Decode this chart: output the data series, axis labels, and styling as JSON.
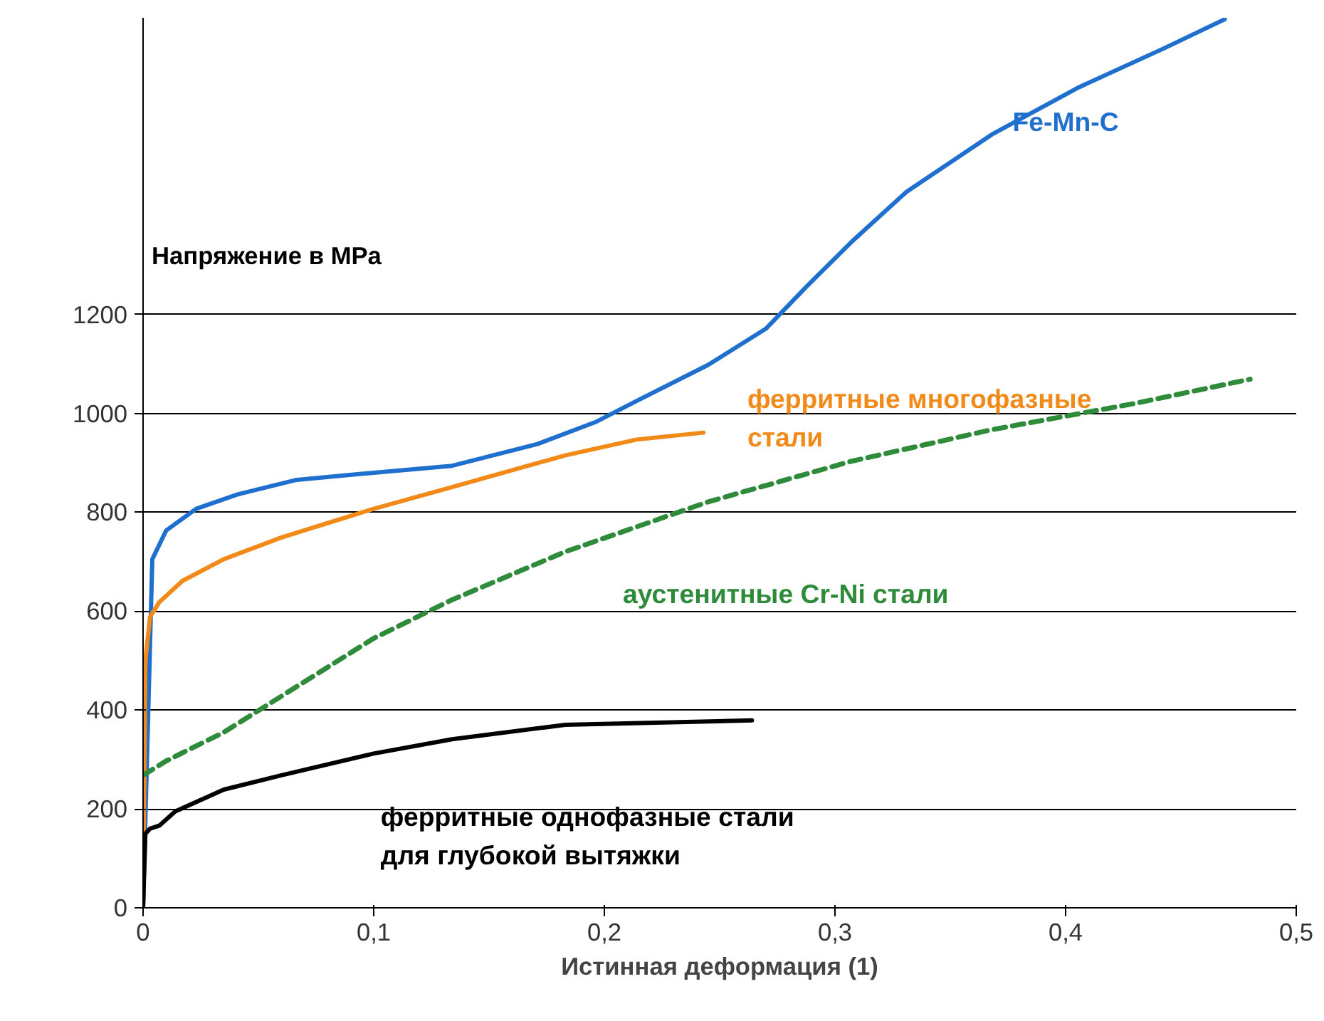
{
  "chart_data": {
    "type": "line",
    "xlabel": "Истинная деформация (1)",
    "ylabel": "Напряжение в MPa",
    "xlim": [
      0,
      0.5
    ],
    "ylim": [
      0,
      1800
    ],
    "xticks": [
      {
        "value": 0,
        "label": "0"
      },
      {
        "value": 0.1,
        "label": "0,1"
      },
      {
        "value": 0.2,
        "label": "0,2"
      },
      {
        "value": 0.3,
        "label": "0,3"
      },
      {
        "value": 0.4,
        "label": "0,4"
      },
      {
        "value": 0.5,
        "label": "0,5"
      }
    ],
    "yticks": [
      0,
      200,
      400,
      600,
      800,
      1000,
      1200
    ],
    "grid": "y",
    "legend": false,
    "series": [
      {
        "name": "Fe-Mn-C",
        "color": "#1f6fcf",
        "line_style": "solid",
        "x": [
          0,
          0.004,
          0.01,
          0.023,
          0.041,
          0.066,
          0.1,
          0.134,
          0.171,
          0.196,
          0.214,
          0.245,
          0.27,
          0.288,
          0.307,
          0.331,
          0.368,
          0.406,
          0.443,
          0.469
        ],
        "values": [
          0,
          705,
          763,
          807,
          836,
          865,
          880,
          894,
          938,
          982,
          1025,
          1098,
          1171,
          1258,
          1346,
          1448,
          1564,
          1660,
          1739,
          1797
        ]
      },
      {
        "name": "ферритные многофазные\nстали",
        "color": "#f28a1a",
        "line_style": "solid",
        "x": [
          0,
          0.001,
          0.003,
          0.007,
          0.017,
          0.035,
          0.06,
          0.1,
          0.134,
          0.183,
          0.214,
          0.243
        ],
        "values": [
          0,
          500,
          588,
          618,
          661,
          705,
          749,
          807,
          851,
          915,
          947,
          961
        ]
      },
      {
        "name": "аустенитные Cr-Ni стали",
        "color": "#2e8b3a",
        "line_style": "dashed",
        "x": [
          0,
          0.01,
          0.035,
          0.06,
          0.1,
          0.134,
          0.183,
          0.245,
          0.307,
          0.368,
          0.43,
          0.48
        ],
        "values": [
          268,
          297,
          355,
          428,
          545,
          623,
          720,
          821,
          903,
          967,
          1020,
          1069
        ]
      },
      {
        "name": "ферритные однофазные стали\nдля глубокой вытяжки",
        "color": "#000000",
        "line_style": "solid",
        "x": [
          0,
          0.001,
          0.003,
          0.007,
          0.014,
          0.035,
          0.06,
          0.1,
          0.134,
          0.183,
          0.264
        ],
        "values": [
          0,
          150,
          160,
          166,
          195,
          239,
          268,
          312,
          341,
          370,
          379
        ]
      }
    ]
  }
}
